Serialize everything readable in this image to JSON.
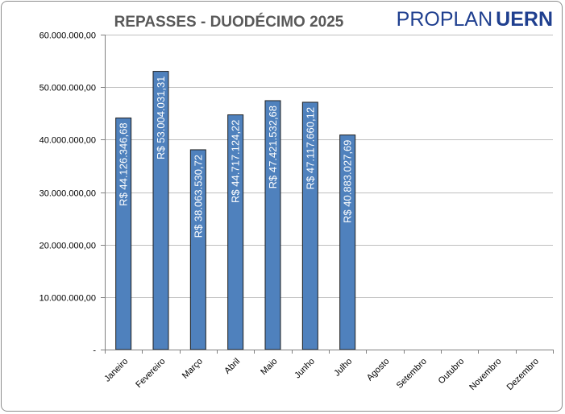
{
  "logo": {
    "part1": "PROPLAN",
    "part2": "UERN"
  },
  "colors": {
    "bar": "#4f81bd",
    "bar_border": "#1f1f1f",
    "grid": "#bfbfbf",
    "logo": "#1f3f8f"
  },
  "chart_data": {
    "type": "bar",
    "title": "REPASSES - DUODÉCIMO 2025",
    "xlabel": "",
    "ylabel": "",
    "ylim": [
      0,
      60000000
    ],
    "grid": true,
    "yticks": [
      {
        "value": 0,
        "label": "-"
      },
      {
        "value": 10000000,
        "label": "10.000.000,00"
      },
      {
        "value": 20000000,
        "label": "20.000.000,00"
      },
      {
        "value": 30000000,
        "label": "30.000.000,00"
      },
      {
        "value": 40000000,
        "label": "40.000.000,00"
      },
      {
        "value": 50000000,
        "label": "50.000.000,00"
      },
      {
        "value": 60000000,
        "label": "60.000.000,00"
      }
    ],
    "categories": [
      "Janeiro",
      "Fevereiro",
      "Março",
      "Abril",
      "Maio",
      "Junho",
      "Julho",
      "Agosto",
      "Setembro",
      "Outubro",
      "Novembro",
      "Dezembro"
    ],
    "values": [
      44126346.68,
      53004031.31,
      38063530.72,
      44717124.22,
      47421532.68,
      47117660.12,
      40883027.69,
      null,
      null,
      null,
      null,
      null
    ],
    "data_labels": [
      "R$ 44.126.346,68",
      "R$ 53.004.031,31",
      "R$ 38.063.530,72",
      "R$ 44.717.124,22",
      "R$ 47.421.532,68",
      "R$ 47.117.660,12",
      "R$ 40.883.027,69",
      "",
      "",
      "",
      "",
      ""
    ]
  }
}
